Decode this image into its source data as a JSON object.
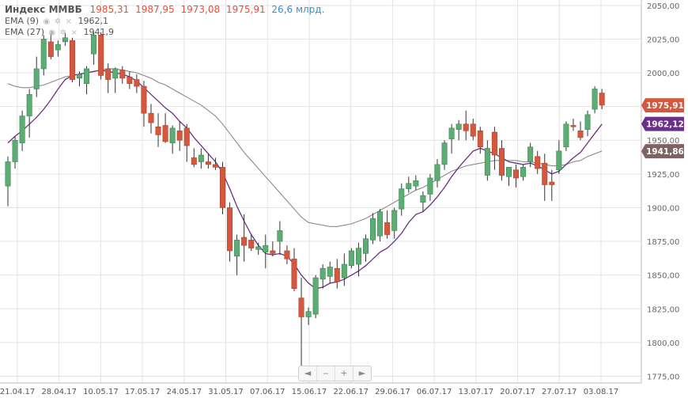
{
  "legend": {
    "title": "Индекс ММВБ",
    "open": "1985,31",
    "high": "1987,95",
    "low": "1973,08",
    "close": "1975,91",
    "volume": "26,6 млрд.",
    "ema9_label": "EMA (9)",
    "ema9_value": "1962,1",
    "ema27_label": "EMA (27)",
    "ema27_value": "1941,9"
  },
  "nav": {
    "back": "◄",
    "minus": "‒",
    "plus": "+",
    "forward": "►"
  },
  "colors": {
    "up": "#5cad73",
    "down": "#d5583e",
    "ema9": "#6a2f86",
    "ema27": "#8a8a8a",
    "grid": "#e3e3e3"
  },
  "chart_data": {
    "type": "candlestick",
    "y_ticks": [
      "2050,00",
      "2025,00",
      "2000,00",
      "1975,00",
      "1950,00",
      "1925,00",
      "1900,00",
      "1875,00",
      "1850,00",
      "1825,00",
      "1800,00",
      "1775,00"
    ],
    "ylim": [
      1770,
      2054
    ],
    "x_tick_labels": [
      "21.04.17",
      "28.04.17",
      "10.05.17",
      "17.05.17",
      "24.05.17",
      "31.05.17",
      "07.06.17",
      "15.06.17",
      "22.06.17",
      "29.06.17",
      "06.07.17",
      "13.07.17",
      "20.07.17",
      "27.07.17",
      "03.08.17"
    ],
    "price_tags": [
      {
        "name": "close",
        "label": "1975,91",
        "value": 1975.91,
        "color": "#d5583e"
      },
      {
        "name": "ema9",
        "label": "1962,12",
        "value": 1962.12,
        "color": "#6a2f86"
      },
      {
        "name": "ema27",
        "label": "1941,86",
        "value": 1941.86,
        "color": "#7f6262"
      }
    ],
    "candles": [
      {
        "o": 1916,
        "h": 1938,
        "l": 1901,
        "c": 1934
      },
      {
        "o": 1934,
        "h": 1953,
        "l": 1929,
        "c": 1950
      },
      {
        "o": 1948,
        "h": 1972,
        "l": 1942,
        "c": 1968
      },
      {
        "o": 1968,
        "h": 1988,
        "l": 1952,
        "c": 1984
      },
      {
        "o": 1988,
        "h": 2012,
        "l": 1982,
        "c": 2003
      },
      {
        "o": 2003,
        "h": 2028,
        "l": 1998,
        "c": 2025
      },
      {
        "o": 2023,
        "h": 2031,
        "l": 2010,
        "c": 2012
      },
      {
        "o": 2017,
        "h": 2024,
        "l": 2012,
        "c": 2021
      },
      {
        "o": 2023,
        "h": 2030,
        "l": 2020,
        "c": 2026
      },
      {
        "o": 2024,
        "h": 2026,
        "l": 1993,
        "c": 1995
      },
      {
        "o": 1996,
        "h": 2001,
        "l": 1990,
        "c": 1999
      },
      {
        "o": 1992,
        "h": 2005,
        "l": 1984,
        "c": 2003
      },
      {
        "o": 2014,
        "h": 2030,
        "l": 2006,
        "c": 2028
      },
      {
        "o": 2028,
        "h": 2030,
        "l": 1995,
        "c": 1998
      },
      {
        "o": 2003,
        "h": 2007,
        "l": 1985,
        "c": 1995
      },
      {
        "o": 1996,
        "h": 2004,
        "l": 1985,
        "c": 2003
      },
      {
        "o": 2002,
        "h": 2005,
        "l": 1992,
        "c": 1996
      },
      {
        "o": 1997,
        "h": 2001,
        "l": 1988,
        "c": 1992
      },
      {
        "o": 1995,
        "h": 1999,
        "l": 1985,
        "c": 1990
      },
      {
        "o": 1990,
        "h": 1994,
        "l": 1960,
        "c": 1970
      },
      {
        "o": 1970,
        "h": 1977,
        "l": 1955,
        "c": 1963
      },
      {
        "o": 1960,
        "h": 1970,
        "l": 1945,
        "c": 1954
      },
      {
        "o": 1961,
        "h": 1970,
        "l": 1948,
        "c": 1949
      },
      {
        "o": 1948,
        "h": 1961,
        "l": 1940,
        "c": 1959
      },
      {
        "o": 1957,
        "h": 1964,
        "l": 1942,
        "c": 1950
      },
      {
        "o": 1959,
        "h": 1962,
        "l": 1934,
        "c": 1946
      },
      {
        "o": 1937,
        "h": 1944,
        "l": 1930,
        "c": 1932
      },
      {
        "o": 1934,
        "h": 1944,
        "l": 1929,
        "c": 1939
      },
      {
        "o": 1934,
        "h": 1940,
        "l": 1929,
        "c": 1932
      },
      {
        "o": 1932,
        "h": 1937,
        "l": 1928,
        "c": 1930
      },
      {
        "o": 1930,
        "h": 1934,
        "l": 1895,
        "c": 1900
      },
      {
        "o": 1900,
        "h": 1904,
        "l": 1860,
        "c": 1868
      },
      {
        "o": 1864,
        "h": 1880,
        "l": 1850,
        "c": 1876
      },
      {
        "o": 1878,
        "h": 1895,
        "l": 1860,
        "c": 1872
      },
      {
        "o": 1876,
        "h": 1880,
        "l": 1868,
        "c": 1870
      },
      {
        "o": 1869,
        "h": 1874,
        "l": 1865,
        "c": 1871
      },
      {
        "o": 1867,
        "h": 1880,
        "l": 1855,
        "c": 1872
      },
      {
        "o": 1868,
        "h": 1875,
        "l": 1864,
        "c": 1866
      },
      {
        "o": 1875,
        "h": 1890,
        "l": 1865,
        "c": 1883
      },
      {
        "o": 1868,
        "h": 1872,
        "l": 1858,
        "c": 1862
      },
      {
        "o": 1862,
        "h": 1870,
        "l": 1838,
        "c": 1840
      },
      {
        "o": 1833,
        "h": 1848,
        "l": 1777,
        "c": 1819
      },
      {
        "o": 1819,
        "h": 1826,
        "l": 1813,
        "c": 1823
      },
      {
        "o": 1821,
        "h": 1850,
        "l": 1818,
        "c": 1848
      },
      {
        "o": 1847,
        "h": 1858,
        "l": 1840,
        "c": 1855
      },
      {
        "o": 1849,
        "h": 1860,
        "l": 1844,
        "c": 1856
      },
      {
        "o": 1855,
        "h": 1862,
        "l": 1840,
        "c": 1845
      },
      {
        "o": 1848,
        "h": 1866,
        "l": 1842,
        "c": 1858
      },
      {
        "o": 1857,
        "h": 1870,
        "l": 1855,
        "c": 1868
      },
      {
        "o": 1858,
        "h": 1874,
        "l": 1849,
        "c": 1870
      },
      {
        "o": 1866,
        "h": 1880,
        "l": 1860,
        "c": 1877
      },
      {
        "o": 1876,
        "h": 1896,
        "l": 1873,
        "c": 1892
      },
      {
        "o": 1879,
        "h": 1899,
        "l": 1875,
        "c": 1897
      },
      {
        "o": 1889,
        "h": 1898,
        "l": 1877,
        "c": 1880
      },
      {
        "o": 1883,
        "h": 1900,
        "l": 1877,
        "c": 1898
      },
      {
        "o": 1899,
        "h": 1918,
        "l": 1894,
        "c": 1914
      },
      {
        "o": 1914,
        "h": 1923,
        "l": 1911,
        "c": 1918
      },
      {
        "o": 1916,
        "h": 1924,
        "l": 1913,
        "c": 1920
      },
      {
        "o": 1904,
        "h": 1912,
        "l": 1897,
        "c": 1909
      },
      {
        "o": 1910,
        "h": 1925,
        "l": 1905,
        "c": 1922
      },
      {
        "o": 1920,
        "h": 1936,
        "l": 1915,
        "c": 1932
      },
      {
        "o": 1932,
        "h": 1950,
        "l": 1928,
        "c": 1948
      },
      {
        "o": 1951,
        "h": 1962,
        "l": 1940,
        "c": 1959
      },
      {
        "o": 1958,
        "h": 1965,
        "l": 1950,
        "c": 1962
      },
      {
        "o": 1962,
        "h": 1972,
        "l": 1950,
        "c": 1957
      },
      {
        "o": 1962,
        "h": 1966,
        "l": 1950,
        "c": 1953
      },
      {
        "o": 1957,
        "h": 1960,
        "l": 1940,
        "c": 1945
      },
      {
        "o": 1924,
        "h": 1950,
        "l": 1920,
        "c": 1944
      },
      {
        "o": 1956,
        "h": 1960,
        "l": 1928,
        "c": 1939
      },
      {
        "o": 1944,
        "h": 1950,
        "l": 1920,
        "c": 1924
      },
      {
        "o": 1923,
        "h": 1930,
        "l": 1916,
        "c": 1930
      },
      {
        "o": 1928,
        "h": 1932,
        "l": 1915,
        "c": 1922
      },
      {
        "o": 1923,
        "h": 1932,
        "l": 1920,
        "c": 1930
      },
      {
        "o": 1934,
        "h": 1948,
        "l": 1930,
        "c": 1945
      },
      {
        "o": 1938,
        "h": 1942,
        "l": 1925,
        "c": 1929
      },
      {
        "o": 1933,
        "h": 1940,
        "l": 1905,
        "c": 1917
      },
      {
        "o": 1919,
        "h": 1928,
        "l": 1905,
        "c": 1917
      },
      {
        "o": 1928,
        "h": 1950,
        "l": 1925,
        "c": 1942
      },
      {
        "o": 1945,
        "h": 1964,
        "l": 1942,
        "c": 1962
      },
      {
        "o": 1961,
        "h": 1966,
        "l": 1957,
        "c": 1960
      },
      {
        "o": 1957,
        "h": 1964,
        "l": 1950,
        "c": 1952
      },
      {
        "o": 1958,
        "h": 1972,
        "l": 1953,
        "c": 1969
      },
      {
        "o": 1973,
        "h": 1990,
        "l": 1970,
        "c": 1988
      },
      {
        "o": 1985,
        "h": 1988,
        "l": 1973,
        "c": 1976
      }
    ],
    "ema9": [
      1948,
      1953,
      1957,
      1962,
      1967,
      1973,
      1980,
      1988,
      1995,
      1998,
      1999,
      2000,
      2001,
      2002,
      2001,
      2000,
      1999,
      1997,
      1994,
      1989,
      1984,
      1979,
      1974,
      1970,
      1964,
      1959,
      1952,
      1946,
      1940,
      1934,
      1926,
      1914,
      1901,
      1890,
      1880,
      1872,
      1866,
      1865,
      1866,
      1864,
      1858,
      1850,
      1844,
      1840,
      1841,
      1844,
      1845,
      1847,
      1850,
      1853,
      1857,
      1862,
      1867,
      1870,
      1875,
      1881,
      1889,
      1895,
      1897,
      1902,
      1908,
      1915,
      1923,
      1930,
      1936,
      1942,
      1944,
      1942,
      1940,
      1937,
      1934,
      1933,
      1932,
      1933,
      1931,
      1928,
      1925,
      1927,
      1932,
      1937,
      1941,
      1948,
      1955,
      1962
    ],
    "ema27": [
      1992,
      1990,
      1989,
      1989,
      1990,
      1991,
      1993,
      1995,
      1997,
      1998,
      1999,
      2000,
      2001,
      2002,
      2003,
      2003,
      2002,
      2001,
      2000,
      1998,
      1996,
      1993,
      1991,
      1988,
      1985,
      1982,
      1979,
      1976,
      1972,
      1968,
      1962,
      1955,
      1948,
      1941,
      1935,
      1929,
      1923,
      1917,
      1911,
      1905,
      1899,
      1893,
      1889,
      1888,
      1887,
      1886,
      1886,
      1887,
      1888,
      1890,
      1892,
      1895,
      1898,
      1901,
      1904,
      1907,
      1910,
      1913,
      1915,
      1918,
      1921,
      1924,
      1927,
      1929,
      1931,
      1932,
      1933,
      1934,
      1935,
      1935,
      1935,
      1935,
      1934,
      1934,
      1933,
      1932,
      1931,
      1931,
      1932,
      1934,
      1935,
      1938,
      1940,
      1942
    ]
  }
}
